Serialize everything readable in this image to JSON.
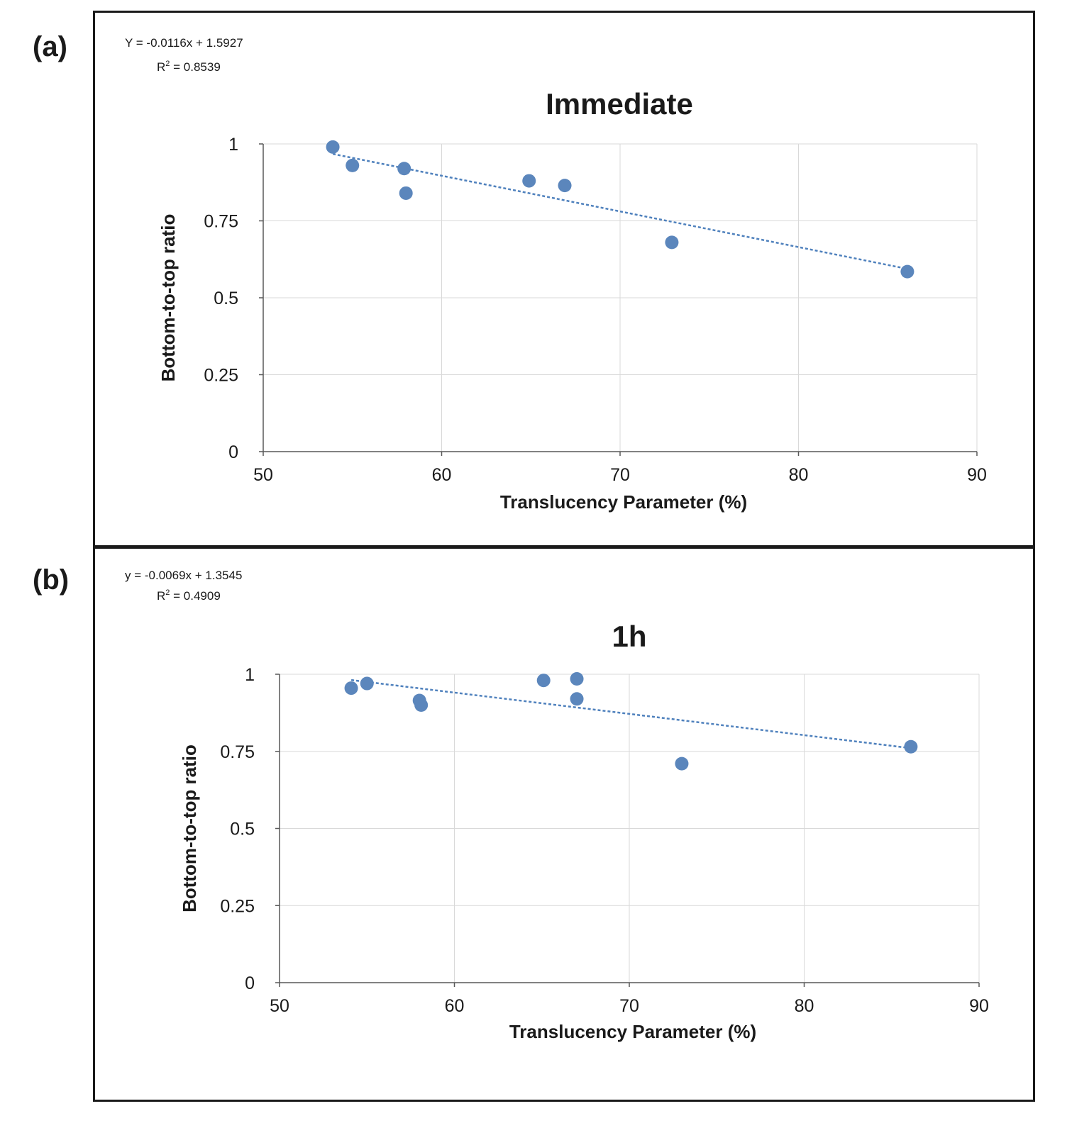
{
  "chart_data": [
    {
      "panel": "(a)",
      "type": "scatter",
      "title": "Immediate",
      "equation": "Y = -0.0116x + 1.5927",
      "r2_label": "R",
      "r2_sup": "2",
      "r2_value": " = 0.8539",
      "xlabel": "Translucency Parameter (%)",
      "ylabel": "Bottom-to-top ratio",
      "xlim": [
        50,
        90
      ],
      "ylim": [
        0,
        1
      ],
      "xticks": [
        50,
        60,
        70,
        80,
        90
      ],
      "xtick_labels": [
        "50",
        "60",
        "70",
        "80",
        "90"
      ],
      "yticks": [
        0,
        0.25,
        0.5,
        0.75,
        1
      ],
      "ytick_labels": [
        "0",
        "0.25",
        "0.5",
        "0.75",
        "1"
      ],
      "trendline": {
        "slope": -0.0116,
        "intercept": 1.5927,
        "x_range": [
          53.9,
          86.1
        ]
      },
      "points": [
        {
          "x": 53.9,
          "y": 0.99
        },
        {
          "x": 55.0,
          "y": 0.93
        },
        {
          "x": 57.9,
          "y": 0.92
        },
        {
          "x": 58.0,
          "y": 0.84
        },
        {
          "x": 64.9,
          "y": 0.88
        },
        {
          "x": 66.9,
          "y": 0.865
        },
        {
          "x": 72.9,
          "y": 0.68
        },
        {
          "x": 86.1,
          "y": 0.585
        }
      ],
      "grid": true
    },
    {
      "panel": "(b)",
      "type": "scatter",
      "title": "1h",
      "equation": "y = -0.0069x + 1.3545",
      "r2_label": "R",
      "r2_sup": "2",
      "r2_value": " = 0.4909",
      "xlabel": "Translucency Parameter (%)",
      "ylabel": "Bottom-to-top ratio",
      "xlim": [
        50,
        90
      ],
      "ylim": [
        0,
        1
      ],
      "xticks": [
        50,
        60,
        70,
        80,
        90
      ],
      "xtick_labels": [
        "50",
        "60",
        "70",
        "80",
        "90"
      ],
      "yticks": [
        0,
        0.25,
        0.5,
        0.75,
        1
      ],
      "ytick_labels": [
        "0",
        "0.25",
        "0.5",
        "0.75",
        "1"
      ],
      "trendline": {
        "slope": -0.0069,
        "intercept": 1.3545,
        "x_range": [
          54.1,
          86.1
        ]
      },
      "points": [
        {
          "x": 54.1,
          "y": 0.955
        },
        {
          "x": 55.0,
          "y": 0.97
        },
        {
          "x": 58.0,
          "y": 0.915
        },
        {
          "x": 58.1,
          "y": 0.9
        },
        {
          "x": 65.1,
          "y": 0.98
        },
        {
          "x": 67.0,
          "y": 0.985
        },
        {
          "x": 67.0,
          "y": 0.92
        },
        {
          "x": 73.0,
          "y": 0.71
        },
        {
          "x": 86.1,
          "y": 0.765
        }
      ],
      "grid": true
    }
  ]
}
